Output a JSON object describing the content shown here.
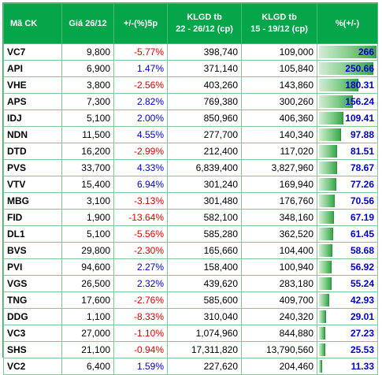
{
  "header": {
    "code": "Mã CK",
    "price": "Giá 26/12",
    "change": "+/-(%)5p",
    "vol1_line1": "KLGD tb",
    "vol1_line2": "22 - 26/12 (cp)",
    "vol2_line1": "KLGD tb",
    "vol2_line2": "15 - 19/12 (cp)",
    "pct": "%(+/-)"
  },
  "colors": {
    "header_bg": "#05a64a",
    "negative": "#e00000",
    "positive": "#0000cc",
    "bar": "#3aa64b"
  },
  "rows": [
    {
      "code": "VC7",
      "price": "9,800",
      "change": "-5.77%",
      "vol1": "398,740",
      "vol2": "109,000",
      "pct": "266",
      "sign": "neg",
      "bar": 1.0
    },
    {
      "code": "API",
      "price": "6,900",
      "change": "1.47%",
      "vol1": "371,140",
      "vol2": "105,840",
      "pct": "250.66",
      "sign": "pos",
      "bar": 0.94
    },
    {
      "code": "VHE",
      "price": "3,800",
      "change": "-2.56%",
      "vol1": "403,260",
      "vol2": "143,860",
      "pct": "180.31",
      "sign": "neg",
      "bar": 0.68
    },
    {
      "code": "APS",
      "price": "7,300",
      "change": "2.82%",
      "vol1": "769,380",
      "vol2": "300,260",
      "pct": "156.24",
      "sign": "pos",
      "bar": 0.59
    },
    {
      "code": "IDJ",
      "price": "5,100",
      "change": "2.00%",
      "vol1": "850,960",
      "vol2": "406,360",
      "pct": "109.41",
      "sign": "pos",
      "bar": 0.41
    },
    {
      "code": "NDN",
      "price": "11,500",
      "change": "4.55%",
      "vol1": "277,700",
      "vol2": "140,340",
      "pct": "97.88",
      "sign": "pos",
      "bar": 0.37
    },
    {
      "code": "DTD",
      "price": "16,200",
      "change": "-2.99%",
      "vol1": "212,400",
      "vol2": "117,020",
      "pct": "81.51",
      "sign": "neg",
      "bar": 0.31
    },
    {
      "code": "PVS",
      "price": "33,700",
      "change": "4.33%",
      "vol1": "6,839,400",
      "vol2": "3,827,960",
      "pct": "78.67",
      "sign": "pos",
      "bar": 0.3
    },
    {
      "code": "VTV",
      "price": "15,400",
      "change": "6.94%",
      "vol1": "301,240",
      "vol2": "169,940",
      "pct": "77.26",
      "sign": "pos",
      "bar": 0.29
    },
    {
      "code": "MBG",
      "price": "3,100",
      "change": "-3.13%",
      "vol1": "301,480",
      "vol2": "176,760",
      "pct": "70.56",
      "sign": "neg",
      "bar": 0.27
    },
    {
      "code": "FID",
      "price": "1,900",
      "change": "-13.64%",
      "vol1": "582,100",
      "vol2": "348,160",
      "pct": "67.19",
      "sign": "neg",
      "bar": 0.25
    },
    {
      "code": "DL1",
      "price": "5,100",
      "change": "-5.56%",
      "vol1": "585,280",
      "vol2": "362,520",
      "pct": "61.45",
      "sign": "neg",
      "bar": 0.23
    },
    {
      "code": "BVS",
      "price": "29,800",
      "change": "-2.30%",
      "vol1": "165,660",
      "vol2": "104,400",
      "pct": "58.68",
      "sign": "neg",
      "bar": 0.22
    },
    {
      "code": "PVI",
      "price": "94,600",
      "change": "2.27%",
      "vol1": "158,400",
      "vol2": "100,940",
      "pct": "56.92",
      "sign": "pos",
      "bar": 0.21
    },
    {
      "code": "VGS",
      "price": "26,500",
      "change": "2.32%",
      "vol1": "439,620",
      "vol2": "283,180",
      "pct": "55.24",
      "sign": "pos",
      "bar": 0.21
    },
    {
      "code": "TNG",
      "price": "17,600",
      "change": "-2.76%",
      "vol1": "585,600",
      "vol2": "409,700",
      "pct": "42.93",
      "sign": "neg",
      "bar": 0.16
    },
    {
      "code": "DDG",
      "price": "1,100",
      "change": "-8.33%",
      "vol1": "310,040",
      "vol2": "240,320",
      "pct": "29.01",
      "sign": "neg",
      "bar": 0.11
    },
    {
      "code": "VC3",
      "price": "27,000",
      "change": "-1.10%",
      "vol1": "1,074,960",
      "vol2": "844,880",
      "pct": "27.23",
      "sign": "neg",
      "bar": 0.1
    },
    {
      "code": "SHS",
      "price": "21,100",
      "change": "-0.94%",
      "vol1": "17,311,820",
      "vol2": "13,790,560",
      "pct": "25.53",
      "sign": "neg",
      "bar": 0.1
    },
    {
      "code": "VC2",
      "price": "6,400",
      "change": "1.59%",
      "vol1": "227,620",
      "vol2": "204,460",
      "pct": "11.33",
      "sign": "pos",
      "bar": 0.04
    }
  ]
}
